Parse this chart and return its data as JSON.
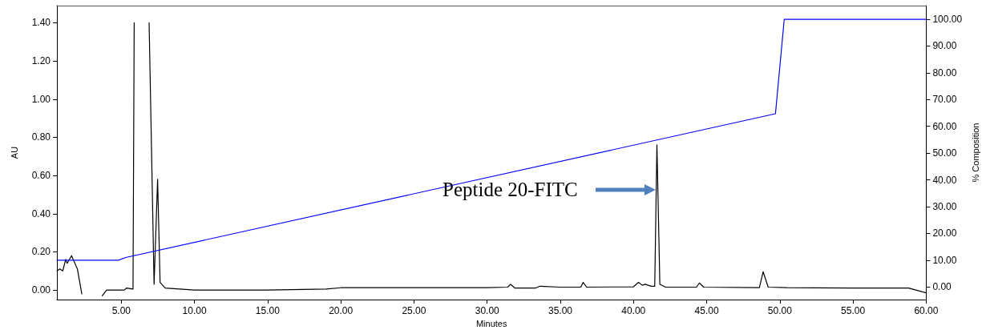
{
  "chart_data": {
    "type": "line",
    "xlabel": "Minutes",
    "ylabel": "AU",
    "y2label": "% Composition",
    "xlim": [
      0.6,
      60
    ],
    "ylim": [
      -0.05,
      1.49
    ],
    "y2lim": [
      -4.7,
      105.1
    ],
    "xticks": [
      {
        "value": 5,
        "label": "5.00"
      },
      {
        "value": 10,
        "label": "10.00"
      },
      {
        "value": 15,
        "label": "15.00"
      },
      {
        "value": 20,
        "label": "20.00"
      },
      {
        "value": 25,
        "label": "25.00"
      },
      {
        "value": 30,
        "label": "30.00"
      },
      {
        "value": 35,
        "label": "35.00"
      },
      {
        "value": 40,
        "label": "40.00"
      },
      {
        "value": 45,
        "label": "45.00"
      },
      {
        "value": 50,
        "label": "50.00"
      },
      {
        "value": 55,
        "label": "55.00"
      },
      {
        "value": 60,
        "label": "60.00"
      }
    ],
    "yticks": [
      {
        "value": 0,
        "label": "0.00"
      },
      {
        "value": 0.2,
        "label": "0.20"
      },
      {
        "value": 0.4,
        "label": "0.40"
      },
      {
        "value": 0.6,
        "label": "0.60"
      },
      {
        "value": 0.8,
        "label": "0.80"
      },
      {
        "value": 1,
        "label": "1.00"
      },
      {
        "value": 1.2,
        "label": "1.20"
      },
      {
        "value": 1.4,
        "label": "1.40"
      }
    ],
    "y2ticks": [
      {
        "value": 0,
        "label": "0.00"
      },
      {
        "value": 10,
        "label": "10.00"
      },
      {
        "value": 20,
        "label": "20.00"
      },
      {
        "value": 30,
        "label": "30.00"
      },
      {
        "value": 40,
        "label": "40.00"
      },
      {
        "value": 50,
        "label": "50.00"
      },
      {
        "value": 60,
        "label": "60.00"
      },
      {
        "value": 70,
        "label": "70.00"
      },
      {
        "value": 80,
        "label": "80.00"
      },
      {
        "value": 90,
        "label": "90.00"
      },
      {
        "value": 100,
        "label": "100.00"
      }
    ],
    "grid": false,
    "series": [
      {
        "color": "#000000",
        "x": [
          0.6,
          0.8,
          1.0,
          1.2,
          1.3,
          1.6,
          2.0,
          2.3,
          3.0,
          3.7,
          4.0,
          5.2,
          5.35,
          5.8,
          5.88,
          6.4,
          6.9,
          7.24,
          7.48,
          7.65,
          8.0,
          10,
          15,
          19,
          20,
          25,
          30,
          31.4,
          31.6,
          31.9,
          33.3,
          33.6,
          35,
          36.4,
          36.56,
          36.8,
          40,
          40.34,
          40.6,
          40.8,
          41.2,
          41.45,
          41.6,
          41.8,
          42.2,
          44.3,
          44.5,
          44.8,
          48.6,
          48.86,
          49.2,
          50.5,
          55,
          58.8,
          60
        ],
        "values": [
          0.1,
          0.11,
          0.1,
          0.16,
          0.14,
          0.18,
          0.11,
          -0.02,
          null,
          -0.03,
          0.0,
          0.0,
          0.01,
          0.005,
          1.4,
          null,
          1.4,
          0.03,
          0.58,
          0.04,
          0.01,
          0.0,
          0.0,
          0.005,
          0.012,
          0.012,
          0.012,
          0.015,
          0.03,
          0.01,
          0.01,
          0.02,
          0.015,
          0.015,
          0.04,
          0.015,
          0.017,
          0.04,
          0.025,
          0.03,
          0.02,
          0.02,
          0.76,
          0.03,
          0.015,
          0.015,
          0.037,
          0.015,
          0.012,
          0.096,
          0.015,
          0.012,
          0.01,
          0.01,
          -0.015
        ]
      },
      {
        "color": "#0000ff",
        "axis": "y2",
        "x": [
          0.6,
          4.8,
          5.3,
          49.7,
          50.3,
          60
        ],
        "values": [
          10,
          10,
          11,
          64.7,
          100,
          100
        ]
      }
    ],
    "annotations": [
      "Peptide 20-FITC"
    ]
  }
}
